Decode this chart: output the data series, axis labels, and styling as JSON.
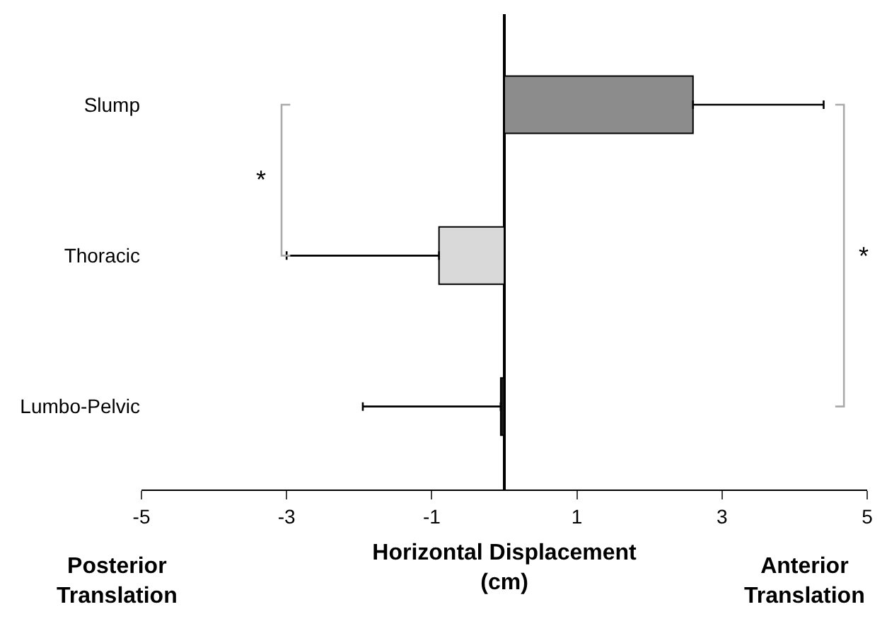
{
  "chart_data": {
    "type": "bar",
    "orientation": "horizontal",
    "categories": [
      "Slump",
      "Thoracic",
      "Lumbo-Pelvic"
    ],
    "values": [
      2.6,
      -0.9,
      -0.05
    ],
    "colors": [
      "#8c8c8c",
      "#d9d9d9",
      "#1a1a1a"
    ],
    "errors": [
      [
        2.6,
        4.4
      ],
      [
        -3.0,
        -0.9
      ],
      [
        -1.95,
        -0.05
      ]
    ],
    "xlabel": "Horizontal Displacement\n(cm)",
    "xlim": [
      -5,
      5
    ],
    "xticks": [
      -5,
      -3,
      -1,
      1,
      3,
      5
    ],
    "legend": false,
    "annotations": [
      "Posterior\nTranslation",
      "Anterior\nTranslation",
      "*",
      "*"
    ]
  }
}
